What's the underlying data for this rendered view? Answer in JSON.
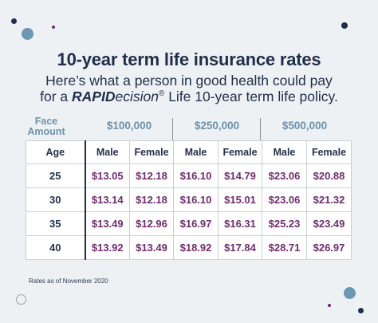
{
  "title": "10-year term life insurance rates",
  "subtitle_line1": "Here’s what a person in good health could pay",
  "subtitle_line2_pre": "for a ",
  "brand_bold": "RAPID",
  "brand_italic": "ecision",
  "brand_reg": "®",
  "subtitle_line2_post": " Life 10-year term life policy.",
  "face_amount_label_line1": "Face",
  "face_amount_label_line2": "Amount",
  "amounts": [
    "$100,000",
    "$250,000",
    "$500,000"
  ],
  "table": {
    "headers": [
      "Age",
      "Male",
      "Female",
      "Male",
      "Female",
      "Male",
      "Female"
    ],
    "rows": [
      {
        "age": "25",
        "rates": [
          "$13.05",
          "$12.18",
          "$16.10",
          "$14.79",
          "$23.06",
          "$20.88"
        ]
      },
      {
        "age": "30",
        "rates": [
          "$13.14",
          "$12.18",
          "$16.10",
          "$15.01",
          "$23.06",
          "$21.32"
        ]
      },
      {
        "age": "35",
        "rates": [
          "$13.49",
          "$12.96",
          "$16.97",
          "$16.31",
          "$25.23",
          "$23.49"
        ]
      },
      {
        "age": "40",
        "rates": [
          "$13.92",
          "$13.49",
          "$18.92",
          "$17.84",
          "$28.71",
          "$26.97"
        ]
      }
    ]
  },
  "footnote": "Rates as of November 2020",
  "colors": {
    "background": "#eef1f4",
    "navy": "#1f2f4a",
    "accent_blue": "#6b92aa",
    "rate_purple": "#6f2c6e"
  }
}
